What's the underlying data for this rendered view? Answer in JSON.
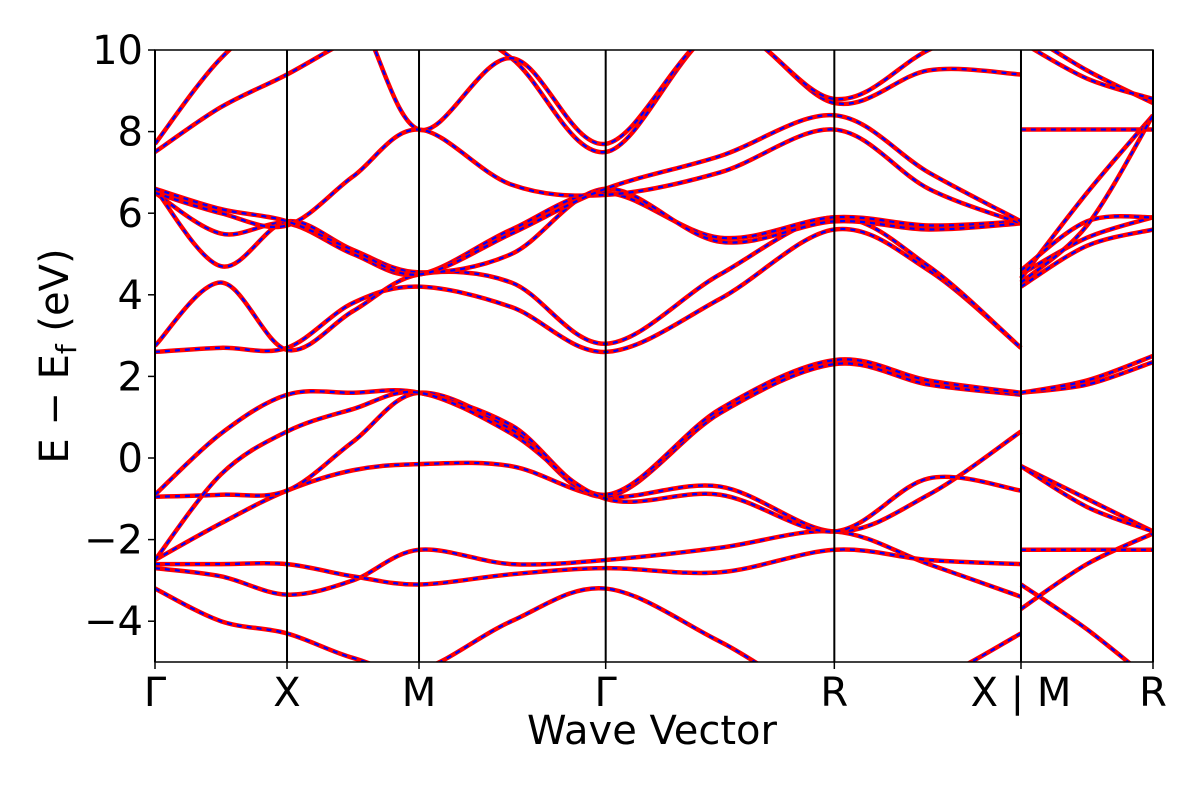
{
  "chart_data": {
    "type": "line",
    "xlabel": "Wave Vector",
    "ylabel": [
      "E − E",
      "f",
      " (eV)"
    ],
    "x": [
      0,
      0.25,
      0.5,
      0.75,
      1.0,
      1.35,
      1.707,
      2.14,
      2.573,
      2.93,
      3.28,
      3.28,
      3.28,
      3.53,
      3.78
    ],
    "xlim": [
      0,
      3.78
    ],
    "xticks": [
      {
        "value": 0,
        "label": "Γ"
      },
      {
        "value": 0.5,
        "label": "X"
      },
      {
        "value": 1.0,
        "label": "M"
      },
      {
        "value": 1.707,
        "label": "Γ"
      },
      {
        "value": 2.573,
        "label": "R"
      },
      {
        "value": 3.28,
        "label": "X | M"
      },
      {
        "value": 3.78,
        "label": "R"
      }
    ],
    "ylim": [
      -5,
      10
    ],
    "yticks": [
      {
        "value": -4,
        "label": "−4"
      },
      {
        "value": -2,
        "label": "−2"
      },
      0,
      2,
      4,
      6,
      8,
      10
    ],
    "color": "#ff0000",
    "overlay_color": "#0000ff",
    "overlay_dashed": true,
    "series": [
      {
        "values": [
          -3.2,
          -4.0,
          -4.3,
          -4.9,
          -5.2,
          -4.0,
          -3.2,
          -4.5,
          -6.0,
          -5.5,
          -4.3,
          null,
          -3.1,
          -4.2,
          -5.5
        ]
      },
      {
        "values": [
          -2.7,
          -2.9,
          -3.35,
          -3.0,
          -2.25,
          -2.6,
          -2.5,
          -2.2,
          -1.8,
          -2.6,
          -3.4,
          null,
          -3.7,
          -2.6,
          -1.85
        ]
      },
      {
        "values": [
          -2.6,
          -2.6,
          -2.6,
          -2.9,
          -3.1,
          -2.85,
          -2.7,
          -2.8,
          -2.25,
          -2.5,
          -2.6,
          null,
          -2.25,
          -2.25,
          -2.25
        ]
      },
      {
        "values": [
          -2.5,
          -1.6,
          -0.8,
          -0.3,
          -0.15,
          -0.2,
          -0.95,
          -0.7,
          -1.8,
          -0.9,
          0.65,
          null,
          -0.2,
          -1.0,
          -1.8
        ]
      },
      {
        "values": [
          -0.95,
          -0.9,
          -0.8,
          0.4,
          1.6,
          0.7,
          -0.95,
          1.1,
          2.3,
          1.8,
          1.55,
          null,
          1.6,
          1.8,
          2.35
        ]
      },
      {
        "values": [
          -0.9,
          0.6,
          1.55,
          1.6,
          1.6,
          0.8,
          -0.9,
          1.2,
          2.4,
          1.9,
          1.6,
          null,
          1.6,
          1.9,
          2.5
        ]
      },
      {
        "values": [
          -2.5,
          -0.4,
          0.65,
          1.2,
          1.6,
          0.6,
          -1.0,
          -0.9,
          -1.8,
          -0.5,
          -0.8,
          null,
          -0.2,
          -1.2,
          -1.8
        ]
      },
      {
        "values": [
          2.6,
          2.7,
          2.7,
          3.8,
          4.2,
          3.7,
          2.6,
          3.9,
          5.6,
          4.6,
          2.7,
          null,
          4.2,
          5.2,
          5.6
        ]
      },
      {
        "values": [
          2.75,
          4.3,
          2.65,
          3.6,
          4.5,
          4.3,
          2.8,
          4.5,
          5.9,
          4.7,
          2.7,
          null,
          4.5,
          5.4,
          5.9
        ]
      },
      {
        "values": [
          6.5,
          5.5,
          5.75,
          5.0,
          4.5,
          5.6,
          6.5,
          5.4,
          5.9,
          5.7,
          5.8,
          null,
          4.4,
          6.5,
          8.4
        ]
      },
      {
        "values": [
          6.6,
          4.7,
          5.8,
          5.1,
          4.55,
          5.0,
          6.6,
          5.3,
          5.8,
          5.6,
          5.75,
          null,
          8.05,
          8.05,
          8.05
        ]
      },
      {
        "values": [
          7.5,
          8.6,
          9.4,
          10.3,
          11,
          9.8,
          7.5,
          10.5,
          8.7,
          9.5,
          9.4,
          null,
          10.5,
          9.5,
          8.7
        ]
      },
      {
        "values": [
          7.7,
          9.8,
          11,
          11,
          8.05,
          9.8,
          7.7,
          10.5,
          8.8,
          10,
          11,
          null,
          10.2,
          9.3,
          8.8
        ]
      },
      {
        "values": [
          6.5,
          6.0,
          5.7,
          6.9,
          8.05,
          6.7,
          6.45,
          7.0,
          8.05,
          6.6,
          5.75,
          null,
          4.6,
          5.8,
          5.9
        ]
      },
      {
        "values": [
          6.6,
          6.1,
          5.8,
          5.1,
          4.5,
          5.5,
          6.6,
          7.4,
          8.4,
          7.0,
          5.8,
          null,
          4.3,
          5.7,
          8.4
        ]
      }
    ]
  }
}
